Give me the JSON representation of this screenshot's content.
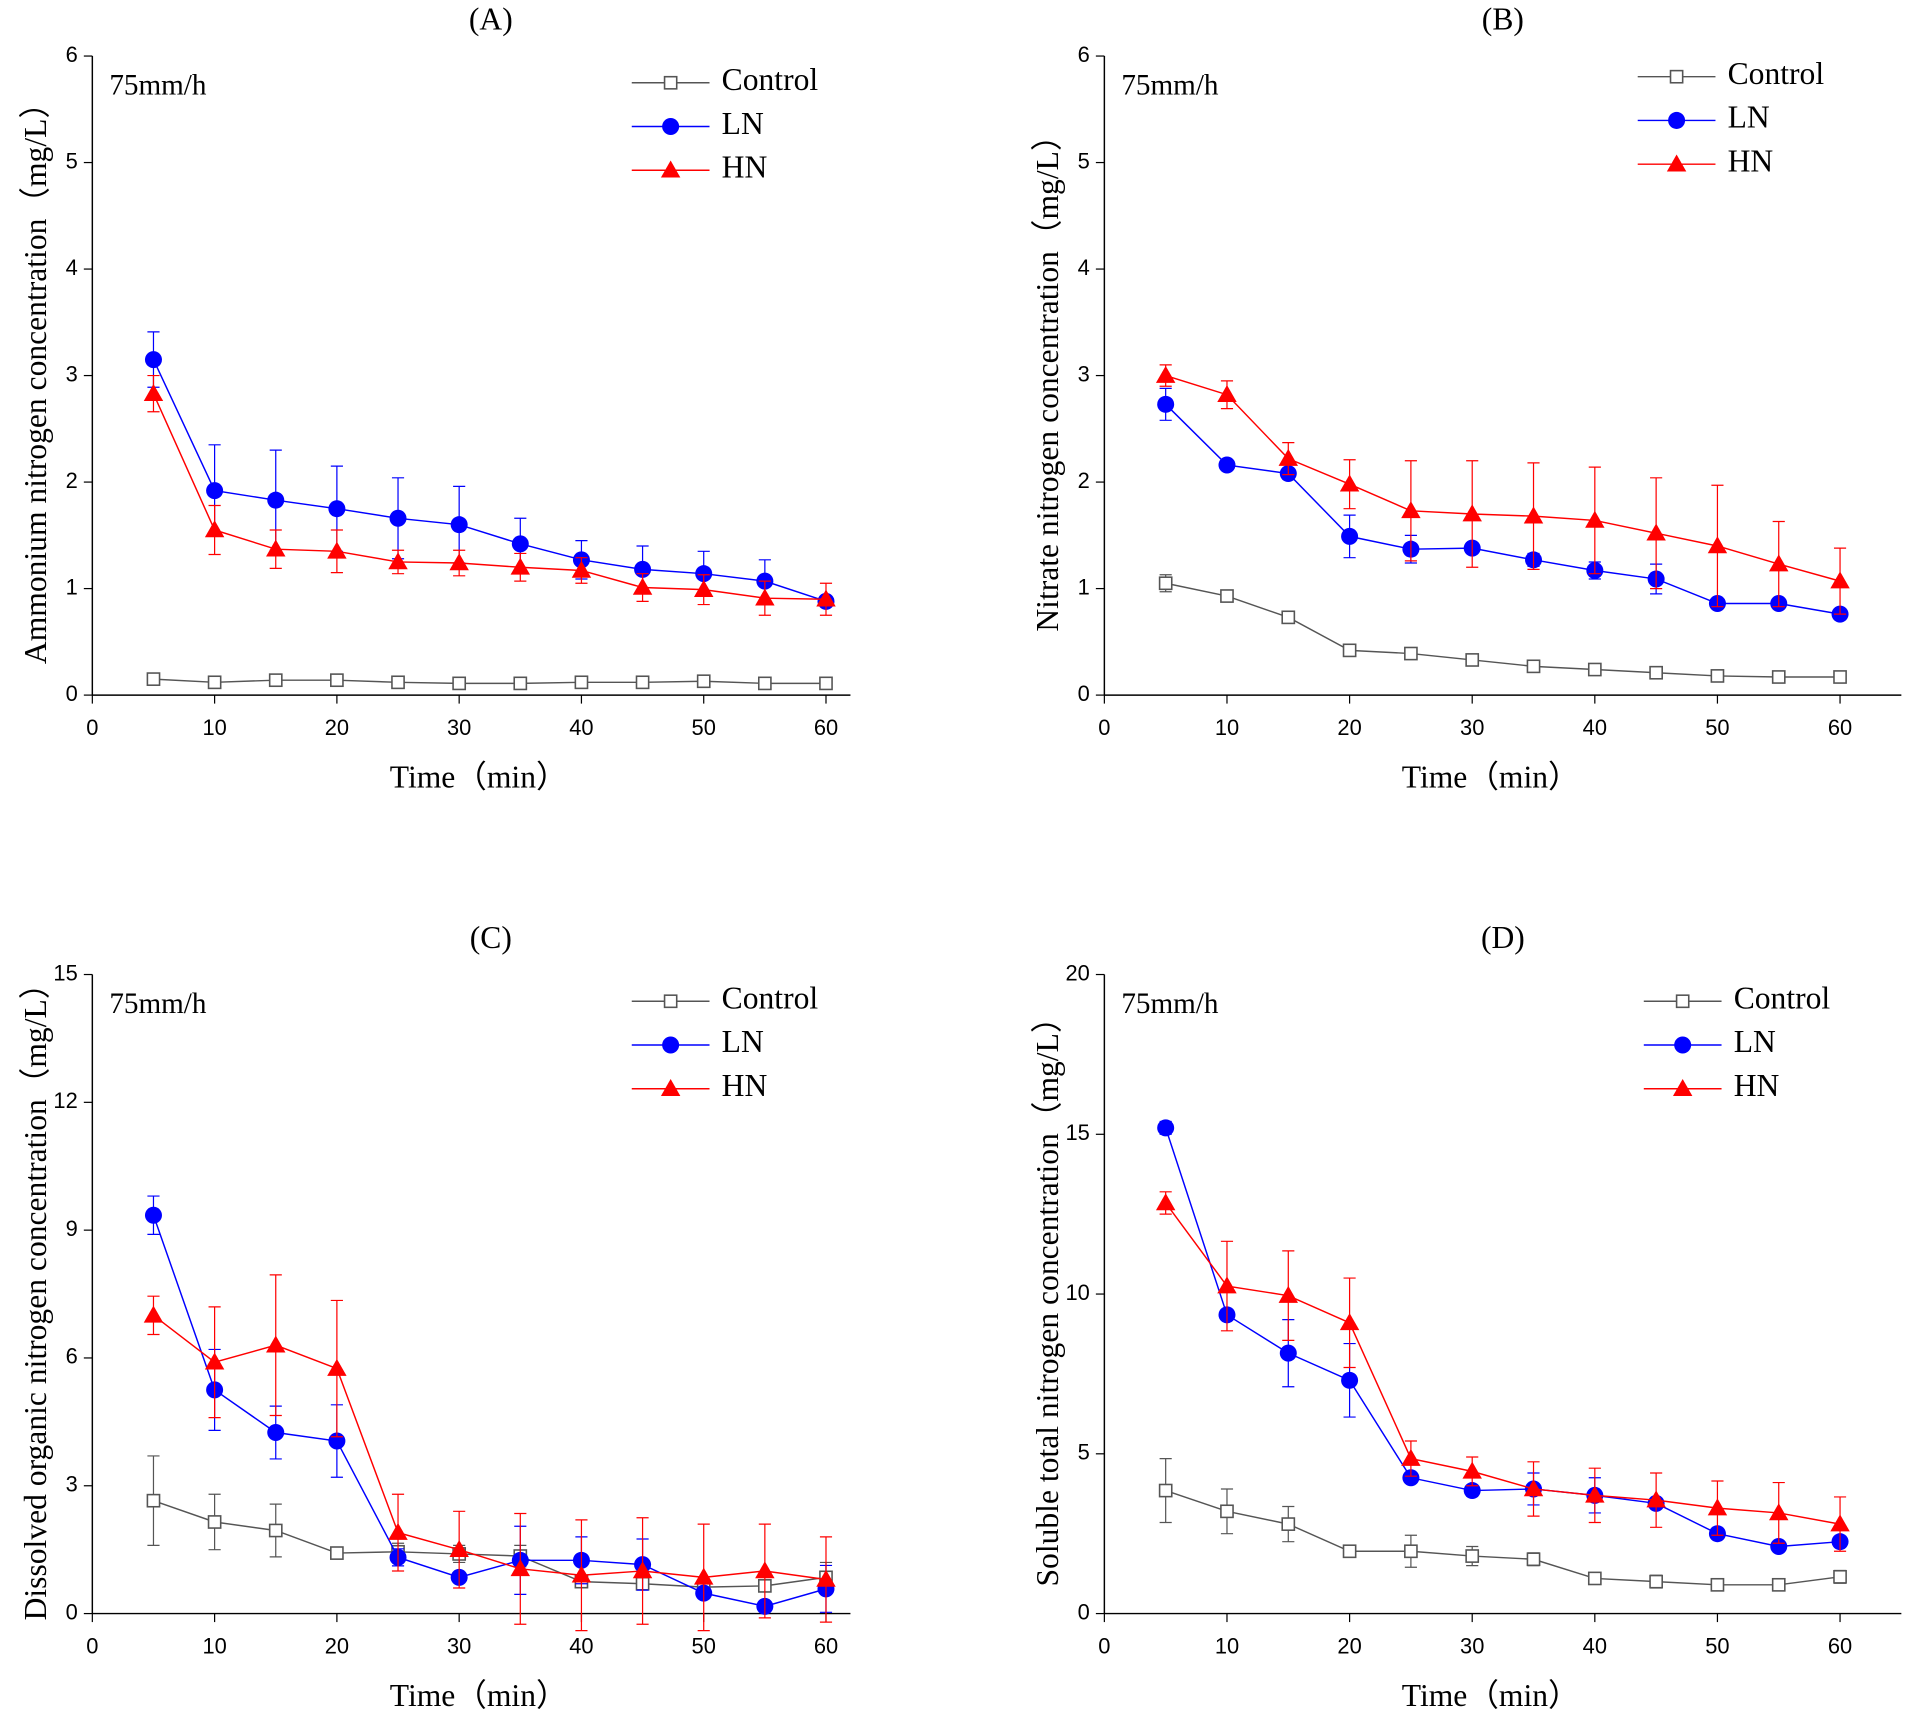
{
  "chart_data": [
    {
      "type": "line",
      "title": "(A)",
      "annotation": "75mm/h",
      "x_label": "Time（min）",
      "y_label": "Ammonium nitrogen concentration（mg/L）",
      "x": [
        5,
        10,
        15,
        20,
        25,
        30,
        35,
        40,
        45,
        50,
        55,
        60
      ],
      "xlim": [
        0,
        62
      ],
      "xticks": [
        0,
        10,
        20,
        30,
        40,
        50,
        60
      ],
      "ylim": [
        0,
        6
      ],
      "yticks": [
        0,
        1,
        2,
        3,
        4,
        5,
        6
      ],
      "series": [
        {
          "name": "Control",
          "color": "#555555",
          "marker": "square",
          "values": [
            0.15,
            0.12,
            0.14,
            0.14,
            0.12,
            0.11,
            0.11,
            0.12,
            0.12,
            0.13,
            0.11,
            0.11
          ],
          "errors": [
            0.03,
            0.03,
            0.03,
            0.03,
            0.03,
            0.03,
            0.03,
            0.03,
            0.03,
            0.03,
            0.03,
            0.03
          ]
        },
        {
          "name": "LN",
          "color": "#0000ff",
          "marker": "circle",
          "values": [
            3.15,
            1.92,
            1.83,
            1.75,
            1.66,
            1.6,
            1.42,
            1.27,
            1.18,
            1.14,
            1.07,
            0.88
          ],
          "errors": [
            0.26,
            0.43,
            0.47,
            0.4,
            0.38,
            0.36,
            0.24,
            0.18,
            0.22,
            0.21,
            0.2,
            0.05
          ]
        },
        {
          "name": "HN",
          "color": "#ff0000",
          "marker": "triangle",
          "values": [
            2.83,
            1.55,
            1.37,
            1.35,
            1.25,
            1.24,
            1.2,
            1.17,
            1.01,
            0.99,
            0.91,
            0.9
          ],
          "errors": [
            0.17,
            0.23,
            0.18,
            0.2,
            0.11,
            0.12,
            0.13,
            0.12,
            0.13,
            0.14,
            0.16,
            0.15
          ]
        }
      ]
    },
    {
      "type": "line",
      "title": "(B)",
      "annotation": "75mm/h",
      "x_label": "Time（min）",
      "y_label": "Nitrate nitrogen concentration（mg/L）",
      "x": [
        5,
        10,
        15,
        20,
        25,
        30,
        35,
        40,
        45,
        50,
        55,
        60
      ],
      "xlim": [
        0,
        65
      ],
      "xticks": [
        0,
        10,
        20,
        30,
        40,
        50,
        60
      ],
      "ylim": [
        0,
        6
      ],
      "yticks": [
        0,
        1,
        2,
        3,
        4,
        5,
        6
      ],
      "series": [
        {
          "name": "Control",
          "color": "#555555",
          "marker": "square",
          "values": [
            1.05,
            0.93,
            0.73,
            0.42,
            0.39,
            0.33,
            0.27,
            0.24,
            0.21,
            0.18,
            0.17,
            0.17
          ],
          "errors": [
            0.08,
            0.04,
            0.05,
            0.04,
            0.03,
            0.03,
            0.03,
            0.03,
            0.03,
            0.03,
            0.03,
            0.03
          ]
        },
        {
          "name": "LN",
          "color": "#0000ff",
          "marker": "circle",
          "values": [
            2.73,
            2.16,
            2.08,
            1.49,
            1.37,
            1.38,
            1.27,
            1.17,
            1.09,
            0.86,
            0.86,
            0.76
          ],
          "errors": [
            0.15,
            0.03,
            0.04,
            0.2,
            0.13,
            0.05,
            0.06,
            0.08,
            0.14,
            0.03,
            0.03,
            0.05
          ]
        },
        {
          "name": "HN",
          "color": "#ff0000",
          "marker": "triangle",
          "values": [
            3.0,
            2.82,
            2.22,
            1.98,
            1.73,
            1.7,
            1.68,
            1.64,
            1.52,
            1.4,
            1.23,
            1.07
          ],
          "errors": [
            0.1,
            0.13,
            0.15,
            0.23,
            0.47,
            0.5,
            0.5,
            0.5,
            0.52,
            0.57,
            0.4,
            0.31
          ]
        }
      ]
    },
    {
      "type": "line",
      "title": "(C)",
      "annotation": "75mm/h",
      "x_label": "Time（min）",
      "y_label": "Dissolved organic nitrogen concentration（mg/L）",
      "x": [
        5,
        10,
        15,
        20,
        25,
        30,
        35,
        40,
        45,
        50,
        55,
        60
      ],
      "xlim": [
        0,
        62
      ],
      "xticks": [
        0,
        10,
        20,
        30,
        40,
        50,
        60
      ],
      "ylim": [
        0,
        15
      ],
      "yticks": [
        0,
        3,
        6,
        9,
        12,
        15
      ],
      "series": [
        {
          "name": "Control",
          "color": "#555555",
          "marker": "square",
          "values": [
            2.65,
            2.15,
            1.95,
            1.42,
            1.45,
            1.4,
            1.35,
            0.75,
            0.7,
            0.62,
            0.65,
            0.85
          ],
          "errors": [
            1.05,
            0.65,
            0.62,
            0.1,
            0.2,
            0.2,
            0.25,
            0.1,
            0.1,
            0.1,
            0.1,
            0.35
          ]
        },
        {
          "name": "LN",
          "color": "#0000ff",
          "marker": "circle",
          "values": [
            9.35,
            5.25,
            4.25,
            4.05,
            1.32,
            0.85,
            1.25,
            1.25,
            1.15,
            0.48,
            0.17,
            0.58
          ],
          "errors": [
            0.45,
            0.95,
            0.62,
            0.85,
            0.2,
            0.1,
            0.8,
            0.55,
            0.6,
            0.1,
            0.1,
            0.55
          ]
        },
        {
          "name": "HN",
          "color": "#ff0000",
          "marker": "triangle",
          "values": [
            7.0,
            5.9,
            6.3,
            5.75,
            1.9,
            1.5,
            1.05,
            0.9,
            1.0,
            0.85,
            1.0,
            0.8
          ],
          "errors": [
            0.45,
            1.3,
            1.65,
            1.6,
            0.9,
            0.9,
            1.3,
            1.3,
            1.25,
            1.25,
            1.1,
            1.0
          ]
        }
      ]
    },
    {
      "type": "line",
      "title": "(D)",
      "annotation": "75mm/h",
      "x_label": "Time（min）",
      "y_label": "Soluble total  nitrogen concentration（mg/L）",
      "x": [
        5,
        10,
        15,
        20,
        25,
        30,
        35,
        40,
        45,
        50,
        55,
        60
      ],
      "xlim": [
        0,
        65
      ],
      "xticks": [
        0,
        10,
        20,
        30,
        40,
        50,
        60
      ],
      "ylim": [
        0,
        20
      ],
      "yticks": [
        0,
        5,
        10,
        15,
        20
      ],
      "series": [
        {
          "name": "Control",
          "color": "#555555",
          "marker": "square",
          "values": [
            3.85,
            3.2,
            2.8,
            1.95,
            1.95,
            1.8,
            1.7,
            1.1,
            1.0,
            0.9,
            0.9,
            1.15
          ],
          "errors": [
            1.0,
            0.7,
            0.55,
            0.15,
            0.5,
            0.3,
            0.2,
            0.15,
            0.2,
            0.1,
            0.1,
            0.2
          ]
        },
        {
          "name": "LN",
          "color": "#0000ff",
          "marker": "circle",
          "values": [
            15.2,
            9.35,
            8.15,
            7.3,
            4.25,
            3.85,
            3.9,
            3.7,
            3.45,
            2.5,
            2.1,
            2.25
          ],
          "errors": [
            0.2,
            0.1,
            1.05,
            1.15,
            0.1,
            0.1,
            0.5,
            0.55,
            0.1,
            0.1,
            0.1,
            0.1
          ]
        },
        {
          "name": "HN",
          "color": "#ff0000",
          "marker": "triangle",
          "values": [
            12.85,
            10.25,
            9.95,
            9.1,
            4.85,
            4.45,
            3.9,
            3.7,
            3.55,
            3.3,
            3.15,
            2.8
          ],
          "errors": [
            0.35,
            1.4,
            1.4,
            1.4,
            0.55,
            0.45,
            0.85,
            0.85,
            0.85,
            0.85,
            0.95,
            0.85
          ]
        }
      ]
    }
  ]
}
